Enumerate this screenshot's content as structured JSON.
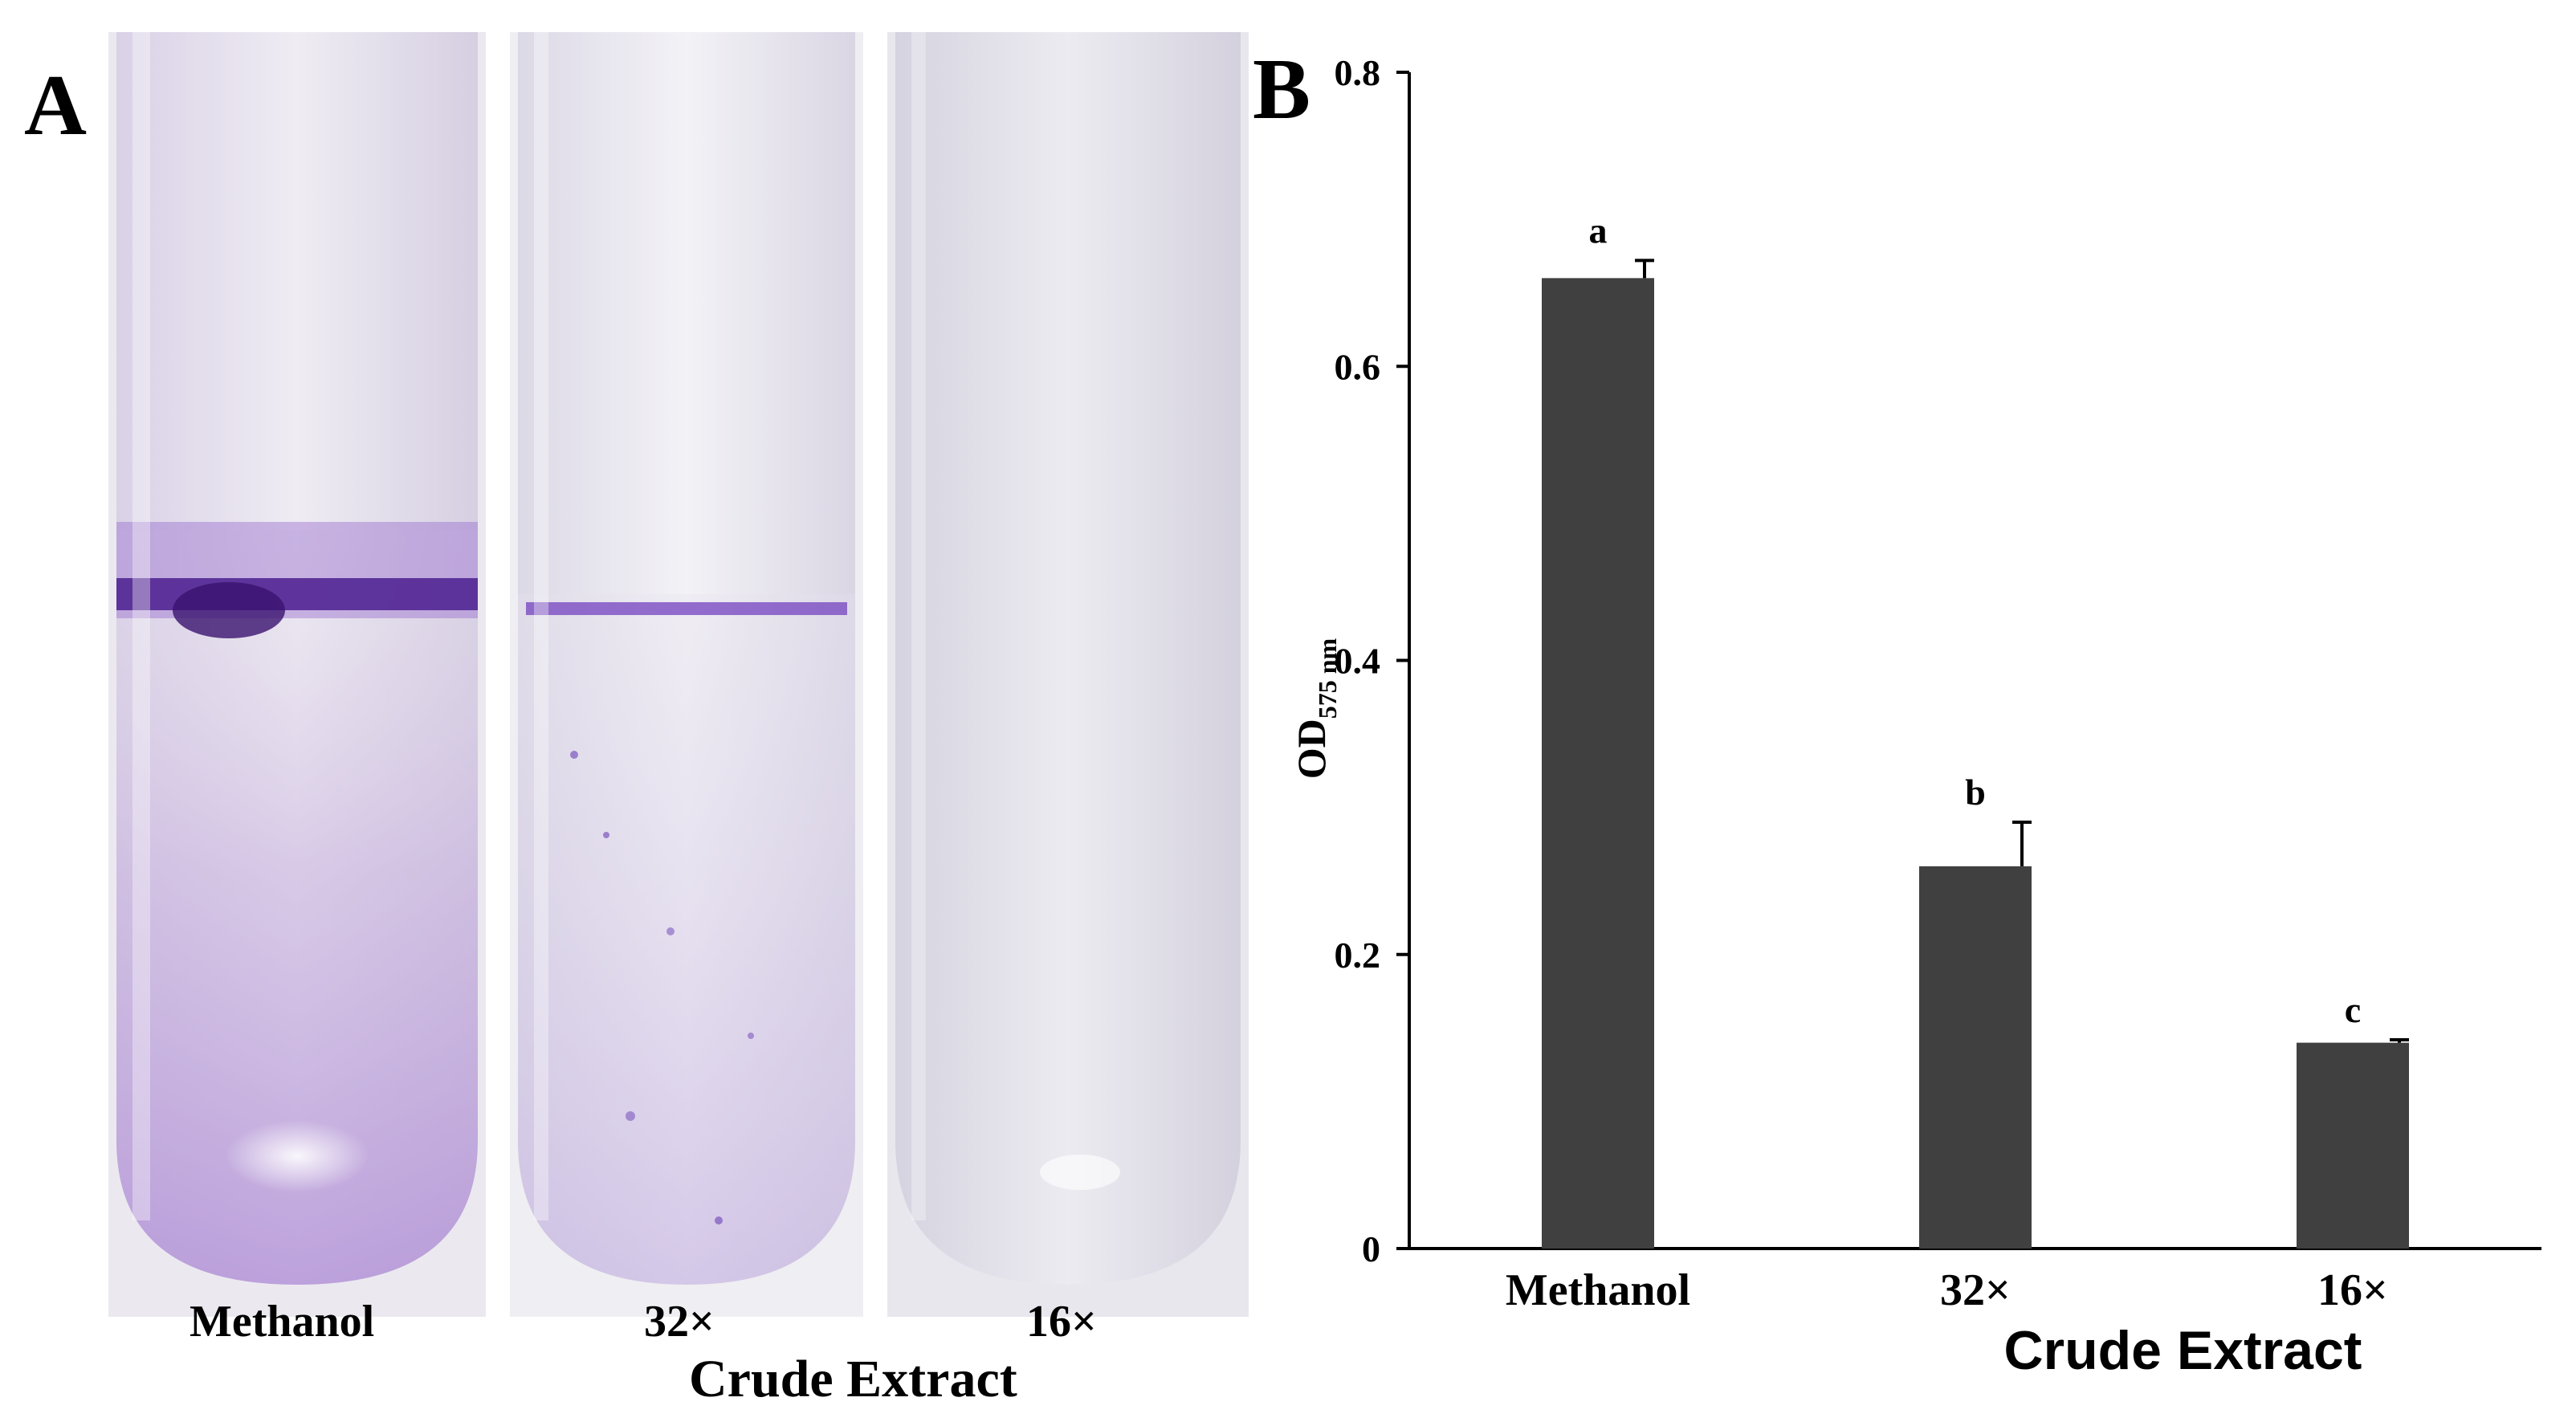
{
  "panel_letters": {
    "a": "A",
    "b": "B"
  },
  "photo_panel": {
    "tubes": [
      {
        "label": "Methanol",
        "stain": "strong"
      },
      {
        "label": "32×",
        "stain": "moderate"
      },
      {
        "label": "16×",
        "stain": "faint"
      }
    ],
    "group_label": "Crude Extract"
  },
  "chart_data": {
    "type": "bar",
    "categories": [
      "Methanol",
      "32×",
      "16×"
    ],
    "values": [
      0.66,
      0.26,
      0.14
    ],
    "errors": [
      0.012,
      0.03,
      0.002
    ],
    "significance_letters": [
      "a",
      "b",
      "c"
    ],
    "ylabel_main": "OD",
    "ylabel_sub": "575 nm",
    "xlabel": "Crude Extract",
    "ylim": [
      0,
      0.8
    ],
    "yticks": [
      "0",
      "0.2",
      "0.4",
      "0.6",
      "0.8"
    ],
    "ytick_values": [
      0,
      0.2,
      0.4,
      0.6,
      0.8
    ],
    "grid": false,
    "bar_color": "#404040"
  }
}
